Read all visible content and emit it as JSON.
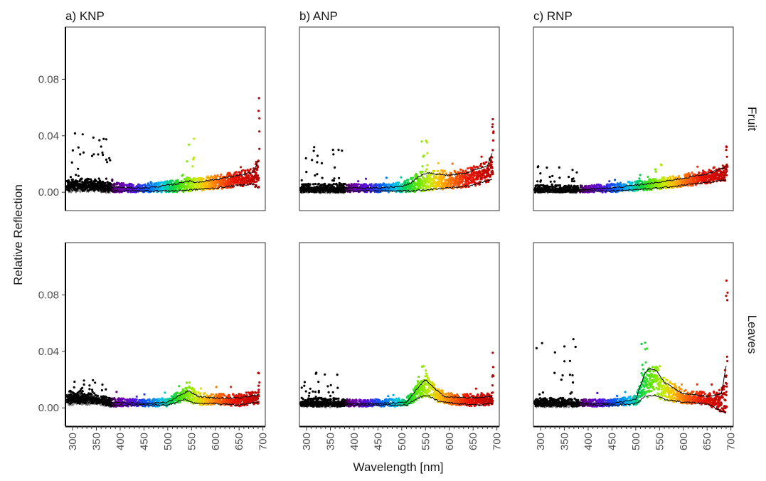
{
  "chart_data": {
    "type": "scatter",
    "xlabel": "Wavelength [nm]",
    "ylabel": "Relative Reflection",
    "xlim": [
      285,
      705
    ],
    "ylim": [
      -0.013,
      0.117
    ],
    "x_ticks": [
      300,
      350,
      400,
      450,
      500,
      550,
      600,
      650,
      700
    ],
    "y_ticks": [
      0.0,
      0.04,
      0.08
    ],
    "y_tick_labels": [
      "0.00",
      "0.04",
      "0.08"
    ],
    "columns": [
      "a) KNP",
      "b) ANP",
      "c) RNP"
    ],
    "rows": [
      "Fruit",
      "Leaves"
    ],
    "grid": false,
    "color_scale": "wavelength rainbow (black below 380 nm, violet 400, blue 450, cyan 490, green 520-550, yellow 575, orange 600, red 650, dark red 700)",
    "panels": [
      {
        "column": "a) KNP",
        "row": "Fruit",
        "upper_curve": [
          [
            290,
            0.006
          ],
          [
            320,
            0.007
          ],
          [
            350,
            0.006
          ],
          [
            380,
            0.004
          ],
          [
            420,
            0.003
          ],
          [
            450,
            0.003
          ],
          [
            480,
            0.004
          ],
          [
            520,
            0.006
          ],
          [
            540,
            0.008
          ],
          [
            560,
            0.007
          ],
          [
            600,
            0.009
          ],
          [
            650,
            0.012
          ],
          [
            680,
            0.014
          ],
          [
            690,
            0.022
          ]
        ],
        "lower_curve": [
          [
            290,
            0.002
          ],
          [
            320,
            0.002
          ],
          [
            350,
            0.002
          ],
          [
            380,
            0.001
          ],
          [
            450,
            0.001
          ],
          [
            520,
            0.001
          ],
          [
            560,
            0.002
          ],
          [
            600,
            0.003
          ],
          [
            650,
            0.005
          ],
          [
            680,
            0.006
          ],
          [
            690,
            0.003
          ]
        ],
        "point_max": 0.071
      },
      {
        "column": "b) ANP",
        "row": "Fruit",
        "upper_curve": [
          [
            290,
            0.003
          ],
          [
            350,
            0.003
          ],
          [
            400,
            0.003
          ],
          [
            450,
            0.003
          ],
          [
            500,
            0.004
          ],
          [
            520,
            0.007
          ],
          [
            540,
            0.012
          ],
          [
            555,
            0.014
          ],
          [
            570,
            0.013
          ],
          [
            600,
            0.012
          ],
          [
            640,
            0.014
          ],
          [
            680,
            0.019
          ],
          [
            690,
            0.028
          ]
        ],
        "lower_curve": [
          [
            290,
            0.001
          ],
          [
            350,
            0.001
          ],
          [
            450,
            0.001
          ],
          [
            520,
            0.001
          ],
          [
            560,
            0.002
          ],
          [
            600,
            0.003
          ],
          [
            650,
            0.005
          ],
          [
            690,
            0.009
          ]
        ],
        "point_max": 0.058
      },
      {
        "column": "c) RNP",
        "row": "Fruit",
        "upper_curve": [
          [
            290,
            0.002
          ],
          [
            350,
            0.002
          ],
          [
            400,
            0.002
          ],
          [
            450,
            0.003
          ],
          [
            500,
            0.005
          ],
          [
            550,
            0.007
          ],
          [
            600,
            0.01
          ],
          [
            650,
            0.013
          ],
          [
            690,
            0.018
          ]
        ],
        "lower_curve": [
          [
            290,
            0.001
          ],
          [
            400,
            0.001
          ],
          [
            450,
            0.001
          ],
          [
            500,
            0.002
          ],
          [
            550,
            0.003
          ],
          [
            600,
            0.005
          ],
          [
            650,
            0.007
          ],
          [
            690,
            0.009
          ]
        ],
        "point_max": 0.033
      },
      {
        "column": "a) KNP",
        "row": "Leaves",
        "upper_curve": [
          [
            290,
            0.009
          ],
          [
            320,
            0.009
          ],
          [
            350,
            0.007
          ],
          [
            380,
            0.004
          ],
          [
            450,
            0.003
          ],
          [
            500,
            0.004
          ],
          [
            530,
            0.01
          ],
          [
            545,
            0.012
          ],
          [
            565,
            0.008
          ],
          [
            600,
            0.007
          ],
          [
            650,
            0.007
          ],
          [
            690,
            0.009
          ]
        ],
        "lower_curve": [
          [
            290,
            0.004
          ],
          [
            350,
            0.004
          ],
          [
            380,
            0.002
          ],
          [
            450,
            0.002
          ],
          [
            500,
            0.002
          ],
          [
            535,
            0.006
          ],
          [
            560,
            0.003
          ],
          [
            600,
            0.003
          ],
          [
            650,
            0.002
          ],
          [
            690,
            0.004
          ]
        ],
        "point_max": 0.025
      },
      {
        "column": "b) ANP",
        "row": "Leaves",
        "upper_curve": [
          [
            290,
            0.004
          ],
          [
            350,
            0.004
          ],
          [
            400,
            0.003
          ],
          [
            450,
            0.003
          ],
          [
            510,
            0.004
          ],
          [
            535,
            0.015
          ],
          [
            550,
            0.02
          ],
          [
            565,
            0.015
          ],
          [
            590,
            0.008
          ],
          [
            640,
            0.007
          ],
          [
            690,
            0.008
          ]
        ],
        "lower_curve": [
          [
            290,
            0.002
          ],
          [
            350,
            0.002
          ],
          [
            450,
            0.002
          ],
          [
            510,
            0.002
          ],
          [
            540,
            0.008
          ],
          [
            555,
            0.009
          ],
          [
            575,
            0.005
          ],
          [
            610,
            0.003
          ],
          [
            660,
            0.002
          ],
          [
            690,
            0.003
          ]
        ],
        "point_max": 0.042
      },
      {
        "column": "c) RNP",
        "row": "Leaves",
        "upper_curve": [
          [
            290,
            0.004
          ],
          [
            350,
            0.004
          ],
          [
            400,
            0.003
          ],
          [
            450,
            0.003
          ],
          [
            500,
            0.006
          ],
          [
            520,
            0.025
          ],
          [
            530,
            0.028
          ],
          [
            545,
            0.026
          ],
          [
            560,
            0.018
          ],
          [
            600,
            0.01
          ],
          [
            650,
            0.008
          ],
          [
            680,
            0.01
          ],
          [
            690,
            0.03
          ]
        ],
        "lower_curve": [
          [
            290,
            0.002
          ],
          [
            350,
            0.002
          ],
          [
            450,
            0.002
          ],
          [
            500,
            0.003
          ],
          [
            520,
            0.008
          ],
          [
            540,
            0.009
          ],
          [
            560,
            0.006
          ],
          [
            600,
            0.004
          ],
          [
            650,
            0.003
          ],
          [
            690,
            -0.004
          ]
        ],
        "point_max": 0.093
      }
    ]
  }
}
